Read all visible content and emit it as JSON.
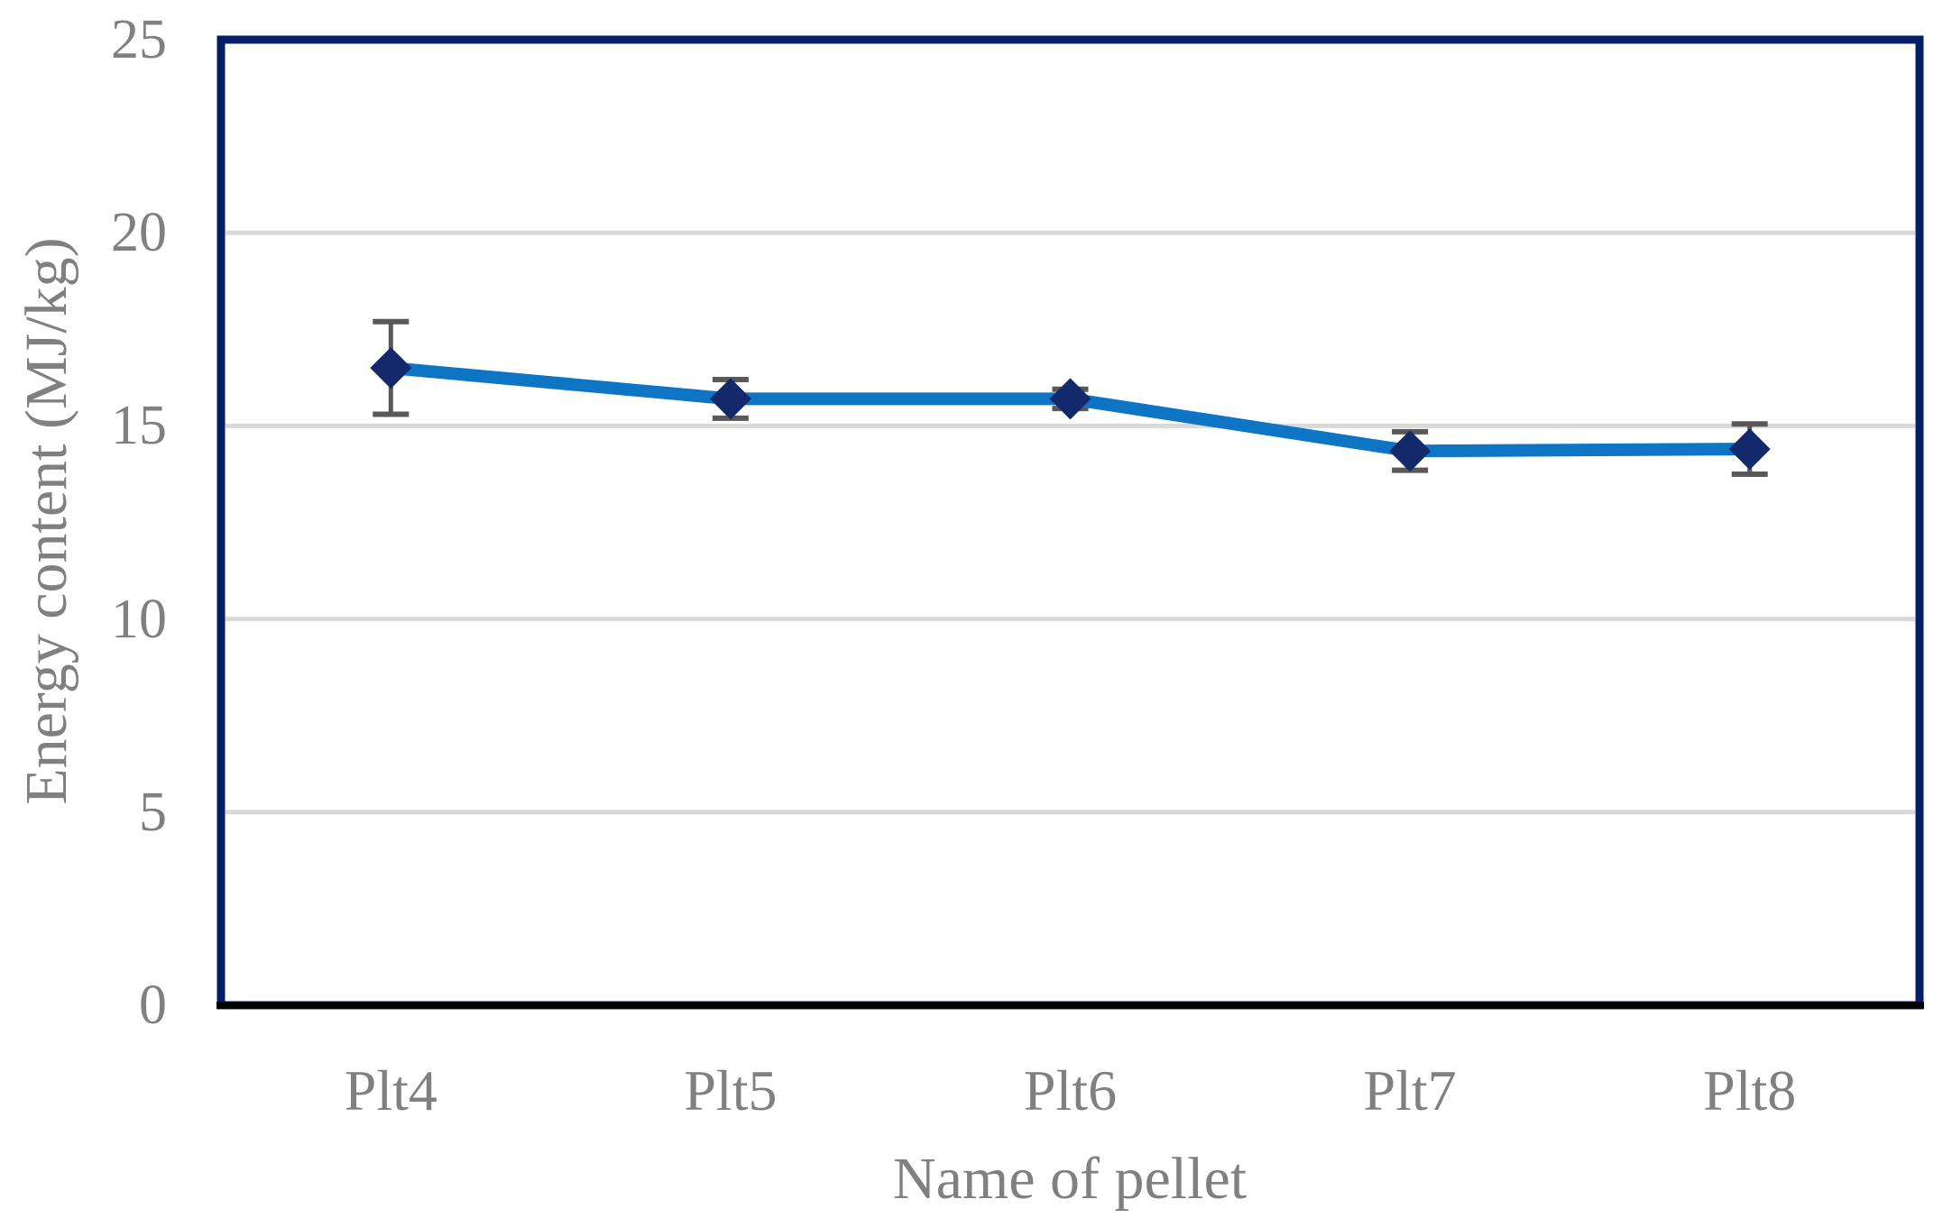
{
  "chart_data": {
    "type": "line",
    "title": "",
    "xlabel": "Name of pellet",
    "ylabel": "Energy content (MJ/kg)",
    "categories": [
      "Plt4",
      "Plt5",
      "Plt6",
      "Plt7",
      "Plt8"
    ],
    "series": [
      {
        "name": "Energy content",
        "values": [
          16.5,
          15.7,
          15.7,
          14.35,
          14.4
        ],
        "error_bars": [
          1.2,
          0.5,
          0.25,
          0.5,
          0.65
        ]
      }
    ],
    "ylim": [
      0,
      25
    ],
    "yticks": [
      0,
      5,
      10,
      15,
      20,
      25
    ],
    "ytick_labels": [
      "0",
      "5",
      "10",
      "15",
      "20",
      "25"
    ],
    "grid": "horizontal-major",
    "legend_position": "none",
    "marker": "diamond",
    "colors": {
      "line": "#0e74c4",
      "marker": "#14296b",
      "error_bar": "#595959",
      "gridline": "#d9d9d9",
      "plot_border": "#051d66",
      "x_axis_line": "#000000",
      "text": "#808080",
      "background": "#ffffff"
    }
  }
}
